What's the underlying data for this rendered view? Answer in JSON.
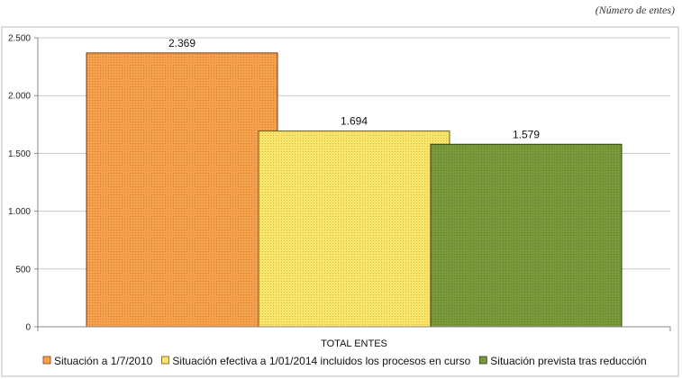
{
  "units_note": "(Número de entes)",
  "chart_data": {
    "type": "bar",
    "categories": [
      "TOTAL ENTES"
    ],
    "series": [
      {
        "name": "Situación a 1/7/2010",
        "values": [
          2369
        ],
        "label": "2.369",
        "color": "#F7A04C",
        "border": "#7A3A10"
      },
      {
        "name": "Situación efectiva a 1/01/2014 incluidos los procesos en curso",
        "values": [
          1694
        ],
        "label": "1.694",
        "color": "#FBE46A",
        "border": "#6E6010"
      },
      {
        "name": "Situación prevista tras reducción",
        "values": [
          1579
        ],
        "label": "1.579",
        "color": "#7A993A",
        "border": "#2F3D10"
      }
    ],
    "yticks": [
      0,
      500,
      1000,
      1500,
      2000,
      2500
    ],
    "ytick_labels": [
      "0",
      "500",
      "1.000",
      "1.500",
      "2.000",
      "2.500"
    ],
    "ylim": [
      0,
      2500
    ],
    "grid": true,
    "legend_position": "bottom",
    "xlabel": "",
    "ylabel": ""
  }
}
